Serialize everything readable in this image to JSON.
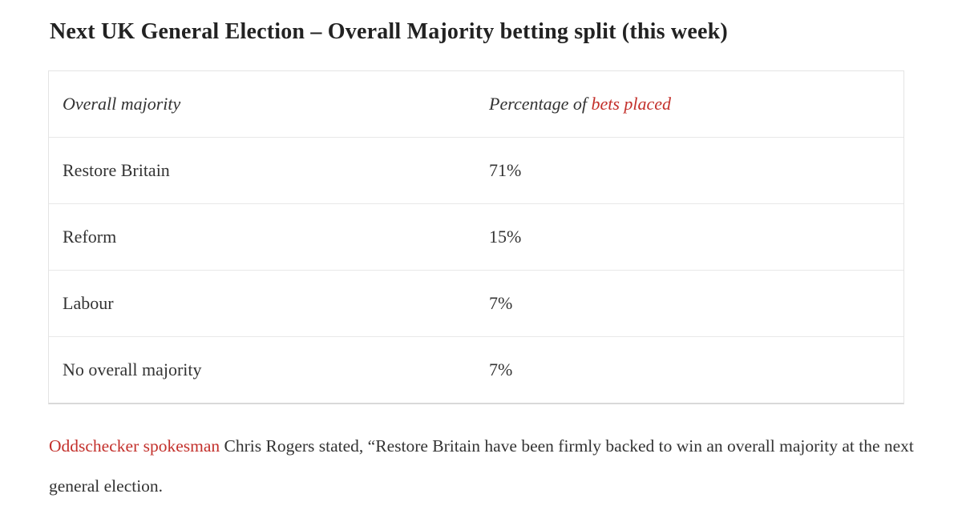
{
  "title": "Next UK General Election – Overall Majority betting split (this week)",
  "table": {
    "header": {
      "col1": "Overall majority",
      "col2_prefix": "Percentage of ",
      "col2_link": "bets placed"
    },
    "rows": [
      {
        "label": "Restore Britain",
        "value": "71%"
      },
      {
        "label": "Reform",
        "value": "15%"
      },
      {
        "label": "Labour",
        "value": "7%"
      },
      {
        "label": "No overall majority",
        "value": "7%"
      }
    ]
  },
  "paragraph": {
    "link_text": "Oddschecker spokesman",
    "text": " Chris Rogers stated, “Restore Britain have been firmly backed to win an overall majority at the next general election."
  },
  "colors": {
    "accent_red": "#c3302b",
    "body_text": "#333333",
    "title_text": "#222222",
    "table_border": "#e4e4e4"
  }
}
